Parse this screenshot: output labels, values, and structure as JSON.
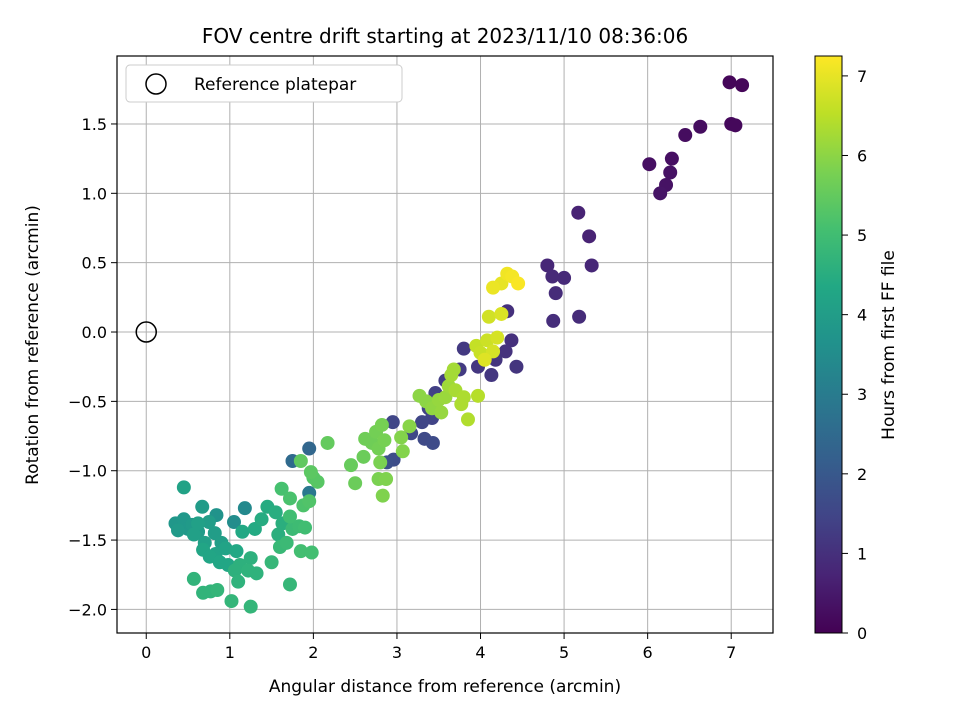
{
  "chart_data": {
    "type": "scatter",
    "title": "FOV centre drift starting at 2023/11/10 08:36:06",
    "xlabel": "Angular distance from reference (arcmin)",
    "ylabel": "Rotation from reference (arcmin)",
    "xlim": [
      -0.35,
      7.5
    ],
    "ylim": [
      -2.17,
      1.99
    ],
    "xticks": [
      "0",
      "1",
      "2",
      "3",
      "4",
      "5",
      "6",
      "7"
    ],
    "xtick_values": [
      0,
      1,
      2,
      3,
      4,
      5,
      6,
      7
    ],
    "yticks": [
      "−2.0",
      "−1.5",
      "−1.0",
      "−0.5",
      "0.0",
      "0.5",
      "1.0",
      "1.5"
    ],
    "ytick_values": [
      -2.0,
      -1.5,
      -1.0,
      -0.5,
      0.0,
      0.5,
      1.0,
      1.5
    ],
    "grid": true,
    "legend": {
      "placement": "top-left",
      "entries": [
        "Reference platepar"
      ]
    },
    "reference_point": {
      "x": 0,
      "y": 0
    },
    "colorbar": {
      "label": "Hours from first FF file",
      "min": 0,
      "max": 7.25,
      "ticks": [
        "0",
        "1",
        "2",
        "3",
        "4",
        "5",
        "6",
        "7"
      ],
      "tick_values": [
        0,
        1,
        2,
        3,
        4,
        5,
        6,
        7
      ],
      "colormap": "viridis"
    },
    "points": [
      [
        6.98,
        1.8,
        0.1
      ],
      [
        7.13,
        1.78,
        0.1
      ],
      [
        7.0,
        1.5,
        0.15
      ],
      [
        7.05,
        1.49,
        0.15
      ],
      [
        6.63,
        1.48,
        0.25
      ],
      [
        6.45,
        1.42,
        0.25
      ],
      [
        6.29,
        1.25,
        0.3
      ],
      [
        6.02,
        1.21,
        0.3
      ],
      [
        6.27,
        1.15,
        0.35
      ],
      [
        6.22,
        1.06,
        0.35
      ],
      [
        6.15,
        1.0,
        0.4
      ],
      [
        5.17,
        0.86,
        0.7
      ],
      [
        5.3,
        0.69,
        0.7
      ],
      [
        4.8,
        0.48,
        0.8
      ],
      [
        5.33,
        0.48,
        0.8
      ],
      [
        4.86,
        0.4,
        0.85
      ],
      [
        5.0,
        0.39,
        0.85
      ],
      [
        4.9,
        0.28,
        0.9
      ],
      [
        5.18,
        0.11,
        0.9
      ],
      [
        4.87,
        0.08,
        0.95
      ],
      [
        4.32,
        0.15,
        1.0
      ],
      [
        4.37,
        -0.06,
        1.0
      ],
      [
        4.3,
        -0.14,
        1.05
      ],
      [
        4.18,
        -0.2,
        1.1
      ],
      [
        4.43,
        -0.25,
        1.1
      ],
      [
        3.97,
        -0.25,
        1.15
      ],
      [
        4.13,
        -0.31,
        1.15
      ],
      [
        3.8,
        -0.12,
        1.2
      ],
      [
        3.75,
        -0.27,
        1.25
      ],
      [
        3.58,
        -0.35,
        1.3
      ],
      [
        3.46,
        -0.44,
        1.35
      ],
      [
        3.38,
        -0.55,
        1.4
      ],
      [
        3.42,
        -0.62,
        1.45
      ],
      [
        3.3,
        -0.65,
        1.5
      ],
      [
        2.95,
        -0.65,
        1.5
      ],
      [
        3.17,
        -0.73,
        1.55
      ],
      [
        3.33,
        -0.77,
        1.6
      ],
      [
        3.43,
        -0.8,
        1.65
      ],
      [
        2.96,
        -0.92,
        1.7
      ],
      [
        2.88,
        -0.94,
        1.75
      ],
      [
        1.95,
        -0.84,
        2.4
      ],
      [
        1.75,
        -0.93,
        2.5
      ],
      [
        1.95,
        -1.16,
        2.9
      ],
      [
        1.18,
        -1.27,
        3.4
      ],
      [
        1.05,
        -1.37,
        3.5
      ],
      [
        0.84,
        -1.32,
        3.7
      ],
      [
        0.35,
        -1.38,
        3.8
      ],
      [
        0.45,
        -1.35,
        3.85
      ],
      [
        0.5,
        -1.42,
        3.85
      ],
      [
        0.38,
        -1.43,
        3.9
      ],
      [
        0.55,
        -1.39,
        3.9
      ],
      [
        0.62,
        -1.44,
        3.95
      ],
      [
        0.67,
        -1.26,
        3.95
      ],
      [
        0.75,
        -1.37,
        4.0
      ],
      [
        0.82,
        -1.45,
        4.0
      ],
      [
        0.9,
        -1.52,
        4.05
      ],
      [
        0.7,
        -1.52,
        4.1
      ],
      [
        0.62,
        -1.38,
        4.1
      ],
      [
        0.57,
        -1.46,
        4.1
      ],
      [
        0.45,
        -1.12,
        4.15
      ],
      [
        0.83,
        -1.6,
        4.2
      ],
      [
        0.95,
        -1.56,
        4.2
      ],
      [
        0.68,
        -1.57,
        4.25
      ],
      [
        0.76,
        -1.62,
        4.25
      ],
      [
        0.88,
        -1.66,
        4.3
      ],
      [
        0.98,
        -1.68,
        4.3
      ],
      [
        1.08,
        -1.58,
        4.35
      ],
      [
        1.15,
        -1.44,
        4.35
      ],
      [
        1.3,
        -1.42,
        4.4
      ],
      [
        1.45,
        -1.26,
        4.45
      ],
      [
        1.38,
        -1.35,
        4.45
      ],
      [
        1.55,
        -1.3,
        4.5
      ],
      [
        1.63,
        -1.38,
        4.55
      ],
      [
        1.58,
        -1.46,
        4.55
      ],
      [
        1.25,
        -1.63,
        4.6
      ],
      [
        1.12,
        -1.68,
        4.6
      ],
      [
        1.06,
        -1.72,
        4.6
      ],
      [
        1.22,
        -1.72,
        4.65
      ],
      [
        1.32,
        -1.74,
        4.65
      ],
      [
        1.1,
        -1.8,
        4.65
      ],
      [
        0.57,
        -1.78,
        4.7
      ],
      [
        0.68,
        -1.88,
        4.7
      ],
      [
        0.77,
        -1.87,
        4.7
      ],
      [
        0.85,
        -1.86,
        4.75
      ],
      [
        1.02,
        -1.94,
        4.75
      ],
      [
        1.25,
        -1.98,
        4.75
      ],
      [
        1.5,
        -1.66,
        4.8
      ],
      [
        1.72,
        -1.82,
        4.8
      ],
      [
        1.6,
        -1.55,
        4.85
      ],
      [
        1.68,
        -1.52,
        4.9
      ],
      [
        1.75,
        -1.42,
        4.9
      ],
      [
        1.83,
        -1.4,
        4.95
      ],
      [
        1.72,
        -1.33,
        5.0
      ],
      [
        1.9,
        -1.41,
        5.0
      ],
      [
        1.85,
        -1.58,
        5.05
      ],
      [
        1.98,
        -1.59,
        5.05
      ],
      [
        1.62,
        -1.13,
        5.1
      ],
      [
        1.72,
        -1.2,
        5.15
      ],
      [
        1.88,
        -1.25,
        5.2
      ],
      [
        1.95,
        -1.22,
        5.25
      ],
      [
        2.0,
        -1.05,
        5.3
      ],
      [
        2.05,
        -1.08,
        5.35
      ],
      [
        1.97,
        -1.01,
        5.4
      ],
      [
        1.85,
        -0.93,
        5.45
      ],
      [
        2.17,
        -0.8,
        5.5
      ],
      [
        2.45,
        -0.96,
        5.55
      ],
      [
        2.5,
        -1.09,
        5.6
      ],
      [
        2.6,
        -0.9,
        5.6
      ],
      [
        2.62,
        -0.77,
        5.65
      ],
      [
        2.7,
        -0.8,
        5.65
      ],
      [
        2.78,
        -0.84,
        5.7
      ],
      [
        2.75,
        -0.72,
        5.7
      ],
      [
        2.82,
        -0.67,
        5.75
      ],
      [
        2.85,
        -0.78,
        5.75
      ],
      [
        2.8,
        -0.94,
        5.8
      ],
      [
        2.78,
        -1.06,
        5.8
      ],
      [
        2.87,
        -1.06,
        5.85
      ],
      [
        2.83,
        -1.18,
        5.85
      ],
      [
        3.05,
        -0.76,
        5.9
      ],
      [
        3.07,
        -0.86,
        5.9
      ],
      [
        3.15,
        -0.68,
        5.95
      ],
      [
        3.27,
        -0.46,
        6.0
      ],
      [
        3.35,
        -0.5,
        6.0
      ],
      [
        3.42,
        -0.55,
        6.05
      ],
      [
        3.5,
        -0.49,
        6.1
      ],
      [
        3.53,
        -0.58,
        6.1
      ],
      [
        3.58,
        -0.47,
        6.15
      ],
      [
        3.62,
        -0.39,
        6.2
      ],
      [
        3.65,
        -0.31,
        6.25
      ],
      [
        3.68,
        -0.27,
        6.25
      ],
      [
        3.7,
        -0.42,
        6.3
      ],
      [
        3.77,
        -0.52,
        6.35
      ],
      [
        3.8,
        -0.47,
        6.35
      ],
      [
        3.85,
        -0.63,
        6.4
      ],
      [
        3.97,
        -0.46,
        6.45
      ],
      [
        3.95,
        -0.1,
        6.6
      ],
      [
        4.0,
        -0.15,
        6.65
      ],
      [
        4.08,
        -0.06,
        6.7
      ],
      [
        4.1,
        0.11,
        6.75
      ],
      [
        4.15,
        -0.14,
        6.8
      ],
      [
        4.2,
        -0.04,
        6.8
      ],
      [
        4.25,
        0.13,
        6.85
      ],
      [
        4.05,
        -0.2,
        6.9
      ],
      [
        4.25,
        0.35,
        7.0
      ],
      [
        4.15,
        0.32,
        7.05
      ],
      [
        4.32,
        0.42,
        7.1
      ],
      [
        4.38,
        0.4,
        7.15
      ],
      [
        4.45,
        0.35,
        7.2
      ]
    ]
  }
}
